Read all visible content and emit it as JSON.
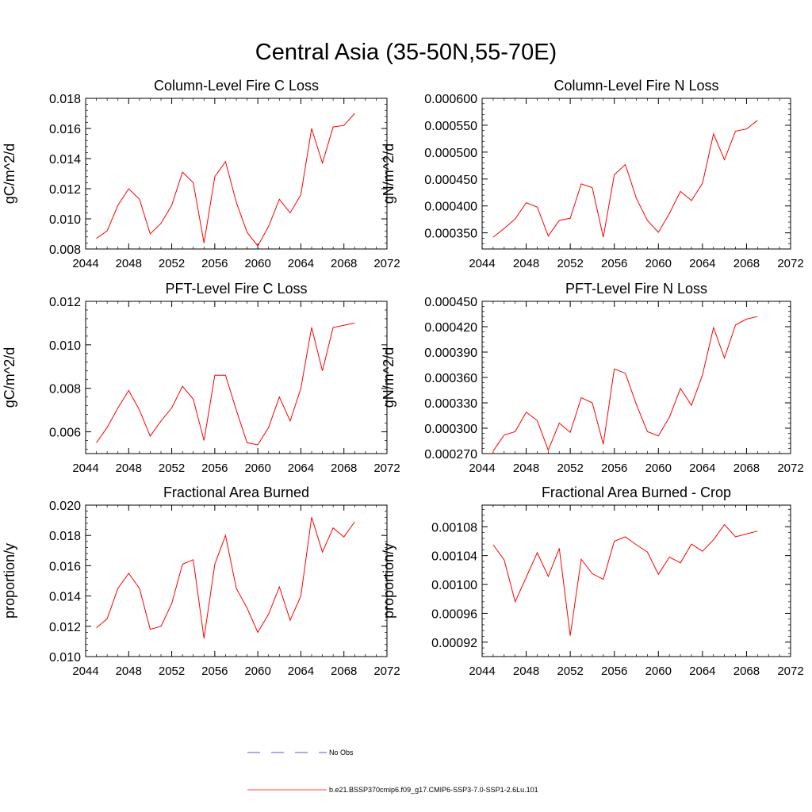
{
  "page": {
    "title": "Central Asia (35-50N,55-70E)"
  },
  "legend": {
    "entries": [
      {
        "label": "No Obs",
        "color": "#2222aa",
        "style": "dashed"
      },
      {
        "label": "b.e21.BSSP370cmip6.f09_g17.CMIP6-SSP3-7.0-SSP1-2.6Lu.101",
        "color": "#ff0000",
        "style": "solid"
      }
    ]
  },
  "chart_data": [
    {
      "type": "line",
      "title": "Column-Level Fire C Loss",
      "xlabel": "",
      "ylabel": "gC/m^2/d",
      "xlim": [
        2044,
        2072
      ],
      "ylim": [
        0.008,
        0.018
      ],
      "xticks": [
        "2044",
        "2048",
        "2052",
        "2056",
        "2060",
        "2064",
        "2068",
        "2072"
      ],
      "yticks": [
        "0.008",
        "0.010",
        "0.012",
        "0.014",
        "0.016",
        "0.018"
      ],
      "x": [
        2045,
        2046,
        2047,
        2048,
        2049,
        2050,
        2051,
        2052,
        2053,
        2054,
        2055,
        2056,
        2057,
        2058,
        2059,
        2060,
        2061,
        2062,
        2063,
        2064,
        2065,
        2066,
        2067,
        2068,
        2069
      ],
      "series": [
        {
          "color": "#ff0000",
          "values": [
            0.0087,
            0.0092,
            0.0109,
            0.012,
            0.0113,
            0.009,
            0.0097,
            0.0109,
            0.0131,
            0.0124,
            0.0084,
            0.0128,
            0.0138,
            0.0111,
            0.0091,
            0.0082,
            0.0095,
            0.0113,
            0.0104,
            0.0116,
            0.016,
            0.0137,
            0.0161,
            0.0162,
            0.017
          ]
        }
      ]
    },
    {
      "type": "line",
      "title": "Column-Level Fire N Loss",
      "xlabel": "",
      "ylabel": "gN/m^2/d",
      "xlim": [
        2044,
        2072
      ],
      "ylim": [
        0.00032,
        0.0006
      ],
      "xticks": [
        "2044",
        "2048",
        "2052",
        "2056",
        "2060",
        "2064",
        "2068",
        "2072"
      ],
      "yticks": [
        "0.000350",
        "0.000400",
        "0.000450",
        "0.000500",
        "0.000550",
        "0.000600"
      ],
      "x": [
        2045,
        2046,
        2047,
        2048,
        2049,
        2050,
        2051,
        2052,
        2053,
        2054,
        2055,
        2056,
        2057,
        2058,
        2059,
        2060,
        2061,
        2062,
        2063,
        2064,
        2065,
        2066,
        2067,
        2068,
        2069
      ],
      "series": [
        {
          "color": "#ff0000",
          "values": [
            0.000342,
            0.000358,
            0.000376,
            0.000406,
            0.000398,
            0.000344,
            0.000373,
            0.000377,
            0.000441,
            0.000434,
            0.000342,
            0.000458,
            0.000477,
            0.000414,
            0.000373,
            0.000351,
            0.000386,
            0.000427,
            0.00041,
            0.000442,
            0.000534,
            0.000486,
            0.000539,
            0.000543,
            0.000559
          ]
        }
      ]
    },
    {
      "type": "line",
      "title": "PFT-Level Fire C Loss",
      "xlabel": "",
      "ylabel": "gC/m^2/d",
      "xlim": [
        2044,
        2072
      ],
      "ylim": [
        0.005,
        0.012
      ],
      "xticks": [
        "2044",
        "2048",
        "2052",
        "2056",
        "2060",
        "2064",
        "2068",
        "2072"
      ],
      "yticks": [
        "0.006",
        "0.008",
        "0.010",
        "0.012"
      ],
      "x": [
        2045,
        2046,
        2047,
        2048,
        2049,
        2050,
        2051,
        2052,
        2053,
        2054,
        2055,
        2056,
        2057,
        2058,
        2059,
        2060,
        2061,
        2062,
        2063,
        2064,
        2065,
        2066,
        2067,
        2068,
        2069
      ],
      "series": [
        {
          "color": "#ff0000",
          "values": [
            0.0055,
            0.0062,
            0.0071,
            0.0079,
            0.007,
            0.0058,
            0.0065,
            0.0071,
            0.0081,
            0.0075,
            0.0056,
            0.0086,
            0.0086,
            0.007,
            0.0055,
            0.0054,
            0.0062,
            0.0076,
            0.0065,
            0.008,
            0.0108,
            0.0088,
            0.0108,
            0.0109,
            0.011
          ]
        }
      ]
    },
    {
      "type": "line",
      "title": "PFT-Level Fire N Loss",
      "xlabel": "",
      "ylabel": "gN/m^2/d",
      "xlim": [
        2044,
        2072
      ],
      "ylim": [
        0.00027,
        0.00045
      ],
      "xticks": [
        "2044",
        "2048",
        "2052",
        "2056",
        "2060",
        "2064",
        "2068",
        "2072"
      ],
      "yticks": [
        "0.000270",
        "0.000300",
        "0.000330",
        "0.000360",
        "0.000390",
        "0.000420",
        "0.000450"
      ],
      "x": [
        2045,
        2046,
        2047,
        2048,
        2049,
        2050,
        2051,
        2052,
        2053,
        2054,
        2055,
        2056,
        2057,
        2058,
        2059,
        2060,
        2061,
        2062,
        2063,
        2064,
        2065,
        2066,
        2067,
        2068,
        2069
      ],
      "series": [
        {
          "color": "#ff0000",
          "values": [
            0.000273,
            0.000292,
            0.000296,
            0.000319,
            0.000309,
            0.000274,
            0.000306,
            0.000295,
            0.000336,
            0.00033,
            0.000281,
            0.00037,
            0.000365,
            0.000328,
            0.000296,
            0.000291,
            0.000313,
            0.000347,
            0.000327,
            0.000363,
            0.000419,
            0.000383,
            0.000422,
            0.000429,
            0.000432
          ]
        }
      ]
    },
    {
      "type": "line",
      "title": "Fractional Area Burned",
      "xlabel": "",
      "ylabel": "proportion/y",
      "xlim": [
        2044,
        2072
      ],
      "ylim": [
        0.01,
        0.02
      ],
      "xticks": [
        "2044",
        "2048",
        "2052",
        "2056",
        "2060",
        "2064",
        "2068",
        "2072"
      ],
      "yticks": [
        "0.010",
        "0.012",
        "0.014",
        "0.016",
        "0.018",
        "0.020"
      ],
      "x": [
        2045,
        2046,
        2047,
        2048,
        2049,
        2050,
        2051,
        2052,
        2053,
        2054,
        2055,
        2056,
        2057,
        2058,
        2059,
        2060,
        2061,
        2062,
        2063,
        2064,
        2065,
        2066,
        2067,
        2068,
        2069
      ],
      "series": [
        {
          "color": "#ff0000",
          "values": [
            0.0119,
            0.0125,
            0.0145,
            0.0155,
            0.0145,
            0.0118,
            0.012,
            0.0135,
            0.0161,
            0.0164,
            0.0112,
            0.0161,
            0.018,
            0.0145,
            0.0132,
            0.0116,
            0.0128,
            0.0146,
            0.0124,
            0.014,
            0.0192,
            0.0169,
            0.0185,
            0.0179,
            0.0189
          ]
        }
      ]
    },
    {
      "type": "line",
      "title": "Fractional Area Burned - Crop",
      "xlabel": "",
      "ylabel": "proportion/y",
      "xlim": [
        2044,
        2072
      ],
      "ylim": [
        0.0009,
        0.00111
      ],
      "xticks": [
        "2044",
        "2048",
        "2052",
        "2056",
        "2060",
        "2064",
        "2068",
        "2072"
      ],
      "yticks": [
        "0.00092",
        "0.00096",
        "0.00100",
        "0.00104",
        "0.00108"
      ],
      "x": [
        2045,
        2046,
        2047,
        2048,
        2049,
        2050,
        2051,
        2052,
        2053,
        2054,
        2055,
        2056,
        2057,
        2058,
        2059,
        2060,
        2061,
        2062,
        2063,
        2064,
        2065,
        2066,
        2067,
        2068,
        2069
      ],
      "series": [
        {
          "color": "#ff0000",
          "values": [
            0.001055,
            0.001034,
            0.000976,
            0.00101,
            0.001044,
            0.001011,
            0.00105,
            0.000929,
            0.001035,
            0.001015,
            0.001007,
            0.00106,
            0.001066,
            0.001055,
            0.001045,
            0.001014,
            0.001038,
            0.00103,
            0.001056,
            0.001046,
            0.001062,
            0.001083,
            0.001066,
            0.00107,
            0.001074
          ]
        }
      ]
    }
  ]
}
